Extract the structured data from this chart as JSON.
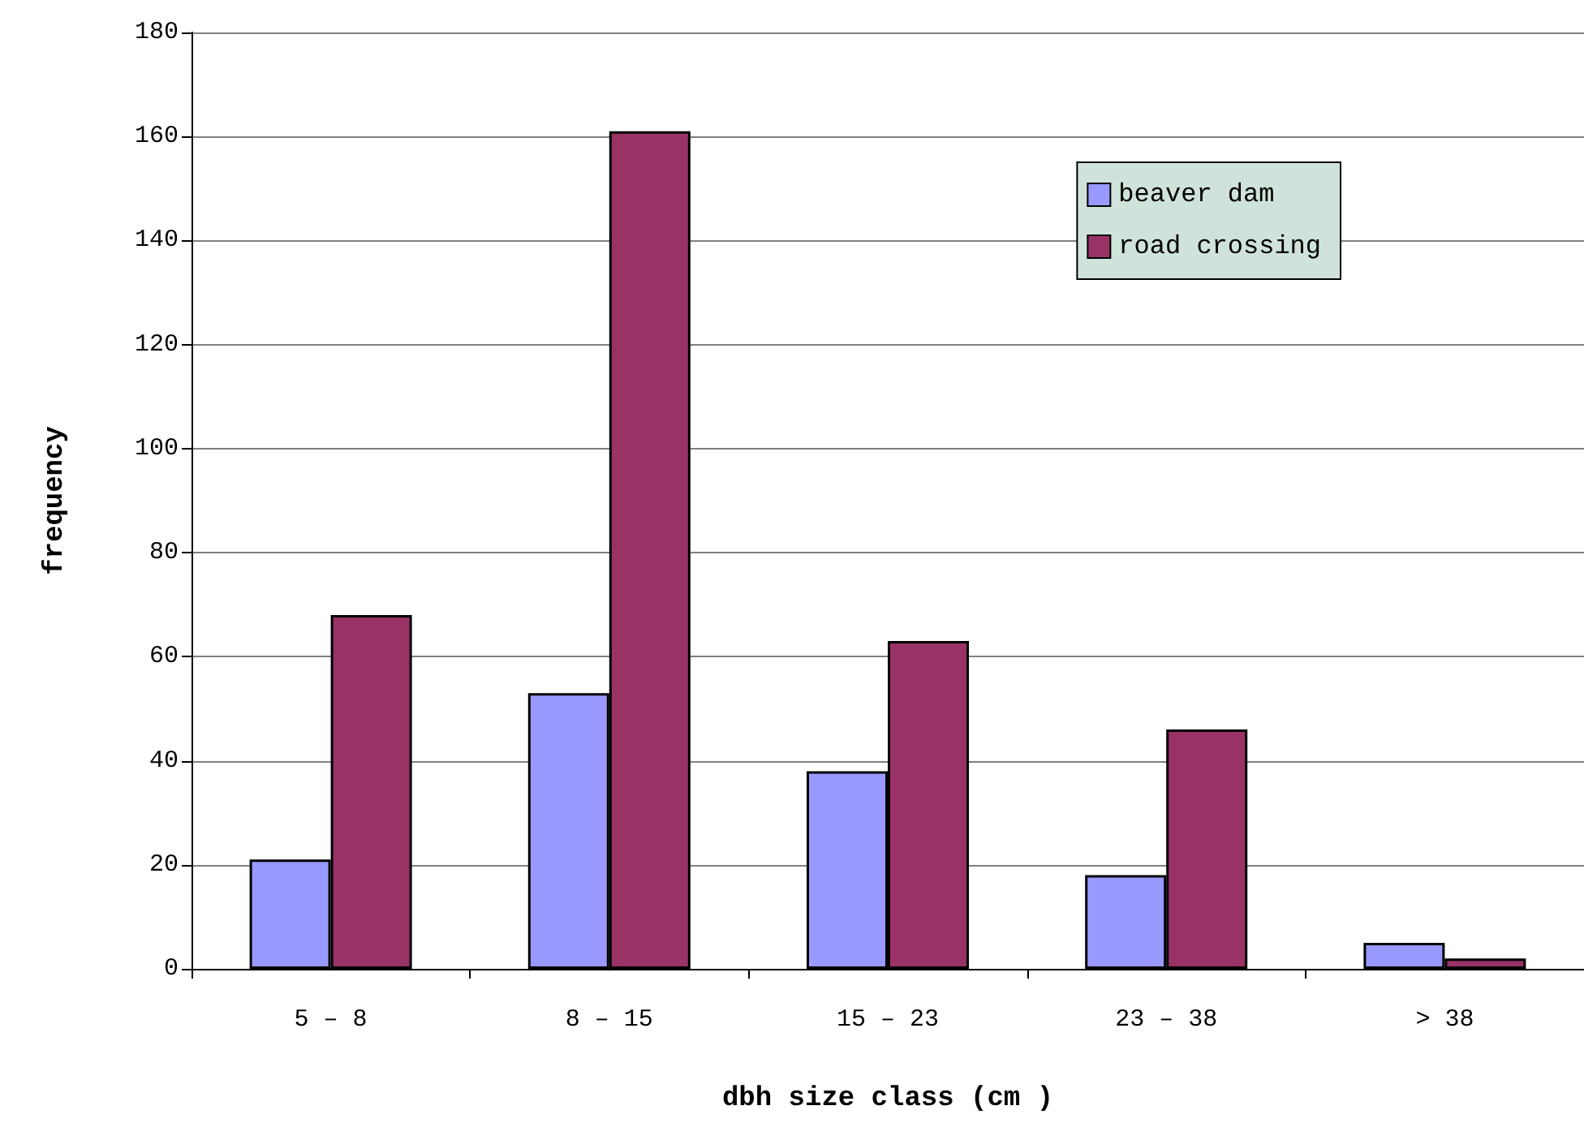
{
  "chart_data": {
    "type": "bar",
    "xlabel": "dbh size class (cm )",
    "ylabel": "frequency",
    "categories": [
      "5 – 8",
      "8 – 15",
      "15 – 23",
      "23 – 38",
      "> 38"
    ],
    "series": [
      {
        "name": "beaver dam",
        "color": "#9999ff",
        "values": [
          21,
          53,
          38,
          18,
          5
        ]
      },
      {
        "name": "road crossing",
        "color": "#993366",
        "values": [
          68,
          161,
          63,
          46,
          2
        ]
      }
    ],
    "ylim": [
      0,
      180
    ],
    "yticks": [
      0,
      20,
      40,
      60,
      80,
      100,
      120,
      140,
      160,
      180
    ],
    "grid": "y",
    "legend": "top right"
  }
}
